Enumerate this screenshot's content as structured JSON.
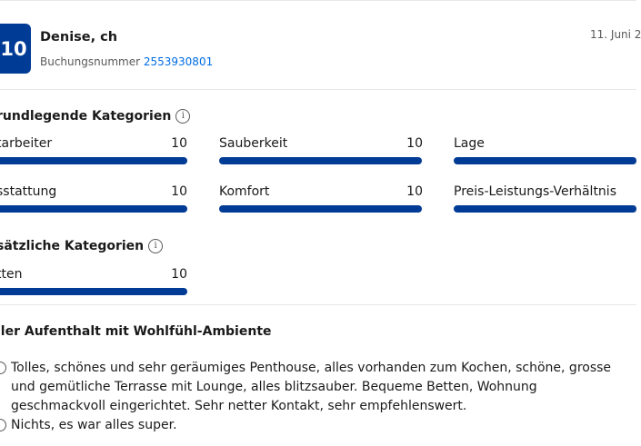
{
  "review": {
    "score": "10",
    "reviewer_name": "Denise, ch",
    "booking_label": "Buchungsnummer",
    "booking_number": "2553930801",
    "date": "11. Juni 2"
  },
  "basic_categories": {
    "title": "rundlegende Kategorien",
    "items": [
      {
        "label": "tarbeiter",
        "score": "10",
        "fraction": 1.0
      },
      {
        "label": "Sauberkeit",
        "score": "10",
        "fraction": 1.0
      },
      {
        "label": "Lage",
        "score": "",
        "fraction": 1.0
      },
      {
        "label": "sstattung",
        "score": "10",
        "fraction": 1.0
      },
      {
        "label": "Komfort",
        "score": "10",
        "fraction": 1.0
      },
      {
        "label": "Preis-Leistungs-Verhältnis",
        "score": "",
        "fraction": 1.0
      }
    ]
  },
  "extra_categories": {
    "title": "sätzliche Kategorien",
    "items": [
      {
        "label": "tten",
        "score": "10",
        "fraction": 1.0
      }
    ]
  },
  "review_text": {
    "title": "ller Aufenthalt mit Wohlfühl-Ambiente",
    "pro": "Tolles, schönes und sehr geräumiges Penthouse, alles vorhanden zum Kochen, schöne, grosse und gemütliche Terrasse mit Lounge, alles blitzsauber. Bequeme Betten, Wohnung geschmackvoll eingerichtet. Sehr netter Kontakt, sehr empfehlenswert.",
    "con": "Nichts, es war alles super."
  },
  "colors": {
    "accent": "#003b95",
    "link": "#006ce4",
    "muted": "#595959"
  },
  "icons": {
    "info": "info-icon",
    "pro": "smiley-icon",
    "con": "sad-icon"
  }
}
